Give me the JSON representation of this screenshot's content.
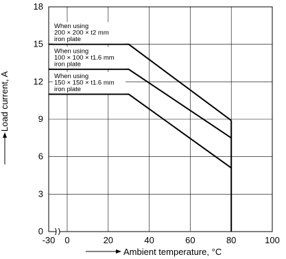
{
  "chart_data": {
    "type": "line",
    "title": "",
    "xlabel": "Ambient temperature, °C",
    "ylabel": "Load current, A",
    "xlim": [
      -30,
      100
    ],
    "ylim": [
      0,
      18
    ],
    "x_axis_break": [
      -30,
      0
    ],
    "xticks": [
      -30,
      0,
      20,
      40,
      60,
      80,
      100
    ],
    "xtick_labels": [
      "-30",
      "0",
      "20",
      "40",
      "60",
      "80",
      "100"
    ],
    "yticks": [
      0,
      3,
      6,
      9,
      12,
      15,
      18
    ],
    "ytick_labels": [
      "0",
      "3",
      "6",
      "9",
      "12",
      "15",
      "18"
    ],
    "grid": true,
    "legend": "none",
    "series": [
      {
        "name": "When using 200 × 200 × t2 mm iron plate",
        "label_lines": [
          "When using",
          "200 × 200 × t2 mm",
          "iron plate"
        ],
        "x": [
          -30,
          30,
          80
        ],
        "y": [
          15,
          15,
          8.9
        ]
      },
      {
        "name": "When using 100 × 100 × t1.6 mm iron plate",
        "label_lines": [
          "When using",
          "100 × 100 × t1.6 mm",
          "iron plate"
        ],
        "x": [
          -30,
          30,
          80
        ],
        "y": [
          13,
          13,
          7.5
        ]
      },
      {
        "name": "When using 150 × 150 × t1.6 mm iron plate",
        "label_lines": [
          "When using",
          "150 × 150 × t1.6 mm",
          "iron plate"
        ],
        "x": [
          -30,
          30,
          80
        ],
        "y": [
          11,
          11,
          5.1
        ]
      }
    ],
    "vertical_limit": {
      "x": 80,
      "y": [
        0,
        8.9
      ]
    }
  }
}
